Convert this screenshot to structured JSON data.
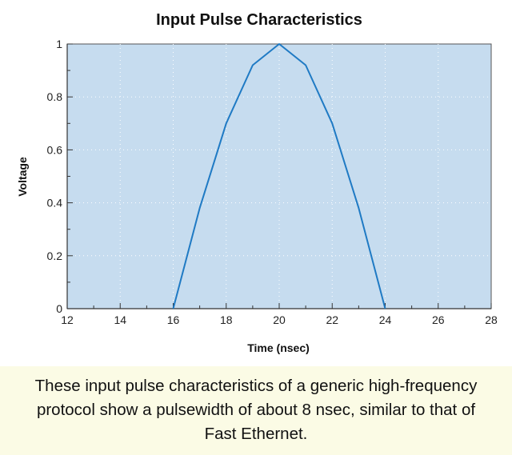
{
  "chart_data": {
    "type": "line",
    "title": "Input Pulse Characteristics",
    "xlabel": "Time (nsec)",
    "ylabel": "Voltage",
    "xlim": [
      12,
      28
    ],
    "ylim": [
      0,
      1
    ],
    "x_ticks": [
      12,
      14,
      16,
      18,
      20,
      22,
      24,
      26,
      28
    ],
    "y_ticks": [
      0,
      0.2,
      0.4,
      0.6,
      0.8,
      1
    ],
    "y_tick_labels": [
      "0",
      "0.2",
      "0.4",
      "0.6",
      "0.8",
      "1"
    ],
    "grid": true,
    "legend": "none",
    "colors": {
      "plot_background": "#c6dcef",
      "line": "#1f7ac4",
      "grid": "#ffffff"
    },
    "series": [
      {
        "x": [
          16,
          17,
          18,
          19,
          20,
          21,
          22,
          23,
          24
        ],
        "y": [
          0,
          0.38,
          0.7,
          0.92,
          1.0,
          0.92,
          0.7,
          0.38,
          0
        ]
      }
    ]
  },
  "caption": {
    "text": "These input pulse characteristics of a generic high-frequency protocol show a pulsewidth of about 8 nsec, similar to that of Fast Ethernet."
  }
}
